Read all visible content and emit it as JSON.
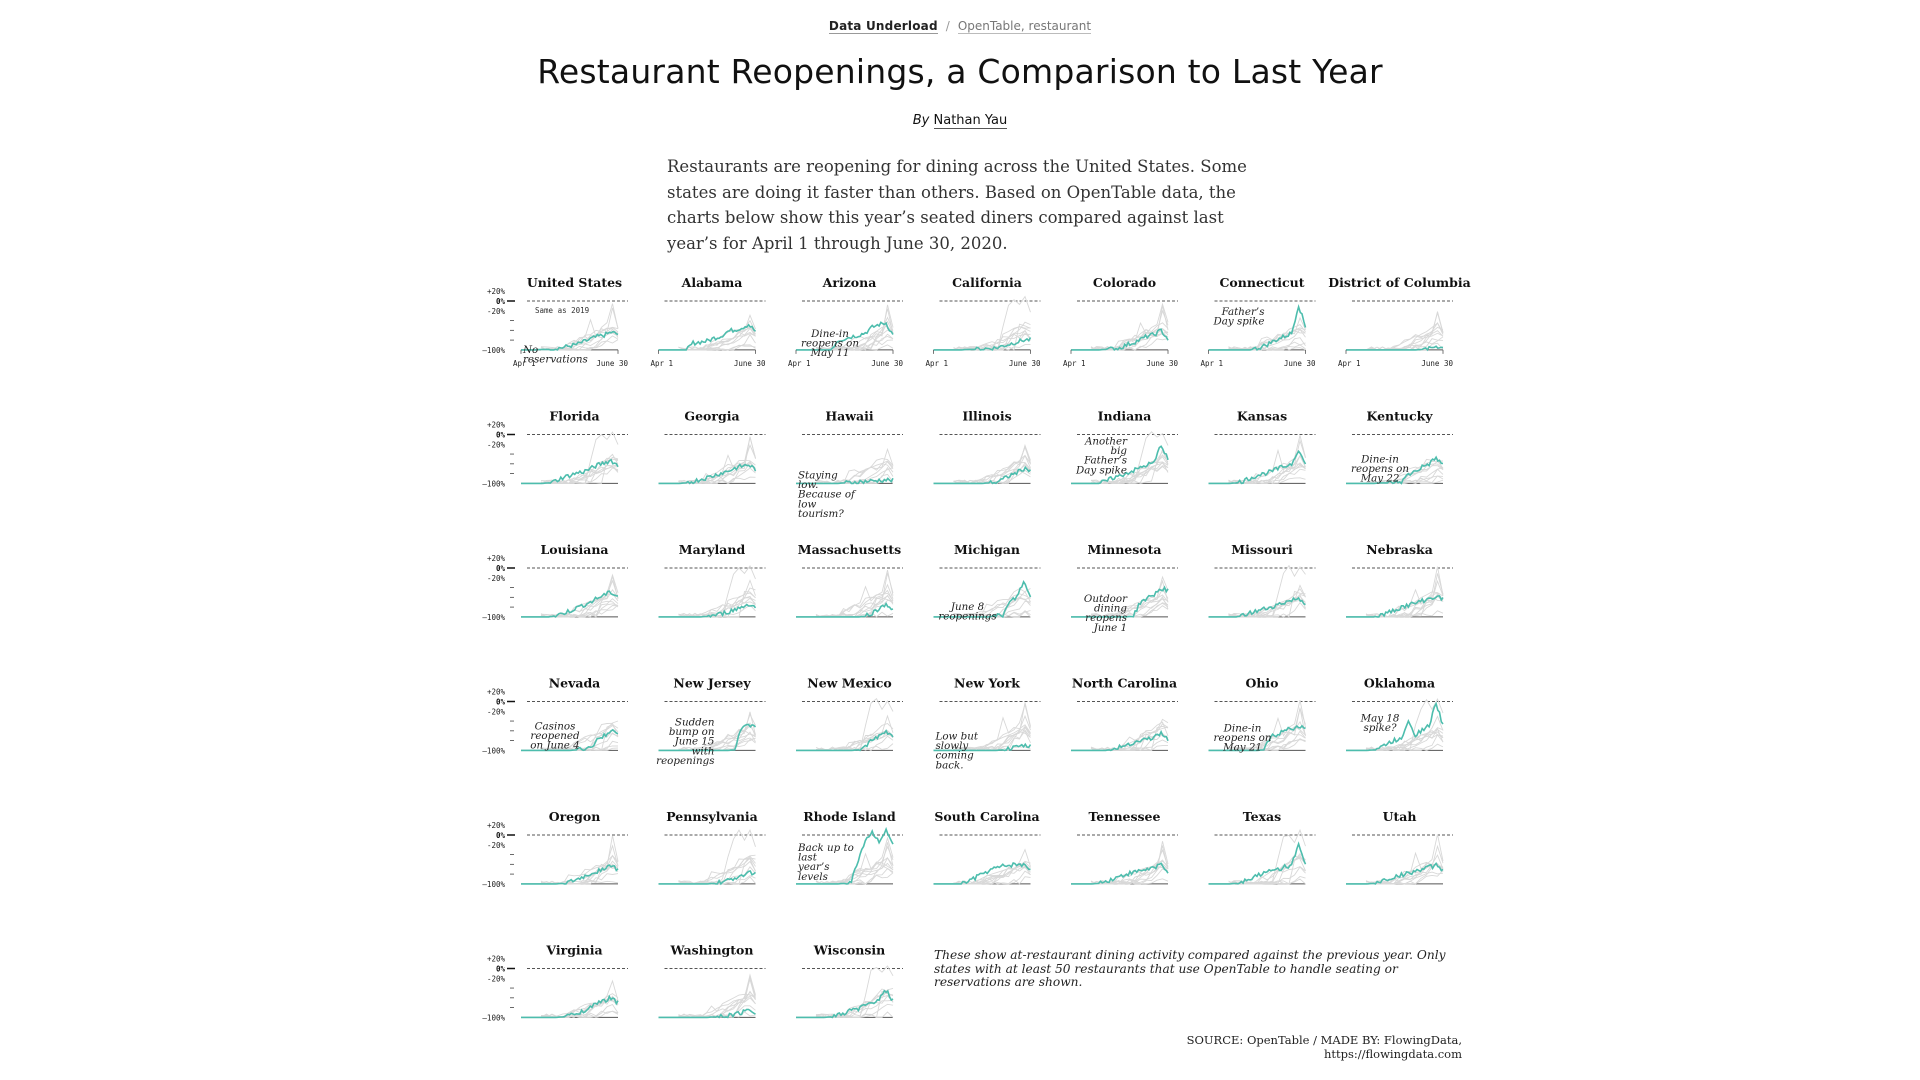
{
  "breadcrumb": {
    "home": "Data Underload",
    "separator": "/",
    "tags": "OpenTable, restaurant"
  },
  "page": {
    "title": "Restaurant Reopenings, a Comparison to Last Year",
    "byline_prefix": "By",
    "author": "Nathan Yau",
    "intro": "Restaurants are reopening for dining across the United States. Some states are doing it faster than others. Based on OpenTable data, the charts below show this year’s seated diners compared against last year’s for April 1 through June 30, 2020.",
    "note": "These show at-restaurant dining activity compared against the previous year. Only states with at least 50 restaurants that use OpenTable to handle seating or reservations are shown.",
    "source": "SOURCE: OpenTable / MADE BY: FlowingData, https://flowingdata.com"
  },
  "colors": {
    "highlight": "#4dbdad",
    "background_lines": "#d8d8d8",
    "baseline": "#555555"
  },
  "chart_data": {
    "type": "line",
    "ylabel_ticks": [
      "+20%",
      "0%",
      "-20%",
      "–100%"
    ],
    "ylim": [
      -100,
      20
    ],
    "reference_line_label": "Same as 2019",
    "x_ticks": [
      "Apr 1",
      "June 30"
    ],
    "x_range": [
      "2020-04-01",
      "2020-06-30"
    ],
    "series": [
      {
        "name": "United States",
        "note": "No reservations",
        "values": [
          -100,
          -100,
          -100,
          -99,
          -99,
          -97,
          -95,
          -92,
          -89,
          -84,
          -78,
          -73,
          -70,
          -64,
          -68
        ]
      },
      {
        "name": "Alabama",
        "values": [
          -100,
          -100,
          -100,
          -100,
          -100,
          -86,
          -84,
          -82,
          -76,
          -72,
          -62,
          -59,
          -55,
          -48,
          -62
        ]
      },
      {
        "name": "Arizona",
        "note": "Dine-in reopens on May 11",
        "values": [
          -100,
          -100,
          -100,
          -100,
          -100,
          -100,
          -81,
          -77,
          -73,
          -70,
          -65,
          -54,
          -48,
          -45,
          -70
        ]
      },
      {
        "name": "California",
        "values": [
          -100,
          -100,
          -100,
          -100,
          -100,
          -99,
          -99,
          -98,
          -97,
          -96,
          -92,
          -88,
          -84,
          -80,
          -79
        ]
      },
      {
        "name": "Colorado",
        "values": [
          -100,
          -100,
          -100,
          -100,
          -100,
          -99,
          -98,
          -96,
          -90,
          -85,
          -79,
          -72,
          -69,
          -60,
          -78
        ]
      },
      {
        "name": "Connecticut",
        "note": "Father’s Day spike",
        "values": [
          -100,
          -100,
          -100,
          -100,
          -100,
          -100,
          -100,
          -97,
          -92,
          -85,
          -78,
          -72,
          -66,
          -8,
          -53
        ]
      },
      {
        "name": "District of Columbia",
        "values": [
          -100,
          -100,
          -100,
          -100,
          -100,
          -100,
          -100,
          -100,
          -100,
          -100,
          -100,
          -99,
          -98,
          -92,
          -96
        ]
      },
      {
        "name": "Florida",
        "values": [
          -100,
          -100,
          -100,
          -100,
          -99,
          -95,
          -88,
          -84,
          -79,
          -76,
          -70,
          -63,
          -58,
          -53,
          -64
        ]
      },
      {
        "name": "Georgia",
        "values": [
          -100,
          -100,
          -100,
          -100,
          -99,
          -96,
          -92,
          -88,
          -84,
          -79,
          -75,
          -69,
          -65,
          -62,
          -71
        ]
      },
      {
        "name": "Hawaii",
        "note": "Staying low. Because of low tourism?",
        "values": [
          -100,
          -100,
          -100,
          -100,
          -100,
          -100,
          -100,
          -99,
          -98,
          -97,
          -96,
          -95,
          -94,
          -93,
          -94
        ]
      },
      {
        "name": "Illinois",
        "values": [
          -100,
          -100,
          -100,
          -100,
          -100,
          -100,
          -100,
          -100,
          -99,
          -98,
          -92,
          -84,
          -78,
          -70,
          -72
        ]
      },
      {
        "name": "Indiana",
        "note": "Another big Father’s Day spike",
        "values": [
          -100,
          -100,
          -100,
          -100,
          -100,
          -96,
          -89,
          -85,
          -79,
          -74,
          -68,
          -62,
          -58,
          -20,
          -52
        ]
      },
      {
        "name": "Kansas",
        "values": [
          -100,
          -100,
          -100,
          -100,
          -99,
          -95,
          -89,
          -84,
          -80,
          -76,
          -70,
          -65,
          -60,
          -30,
          -63
        ]
      },
      {
        "name": "Kentucky",
        "note": "Dine-in reopens on May 22",
        "values": [
          -100,
          -100,
          -100,
          -100,
          -100,
          -99,
          -99,
          -98,
          -97,
          -82,
          -75,
          -66,
          -60,
          -48,
          -62
        ]
      },
      {
        "name": "Louisiana",
        "values": [
          -100,
          -100,
          -100,
          -100,
          -100,
          -98,
          -93,
          -88,
          -82,
          -76,
          -70,
          -62,
          -55,
          -50,
          -58
        ]
      },
      {
        "name": "Maryland",
        "values": [
          -100,
          -100,
          -100,
          -100,
          -100,
          -100,
          -100,
          -99,
          -97,
          -94,
          -90,
          -85,
          -80,
          -74,
          -80
        ]
      },
      {
        "name": "Massachusetts",
        "values": [
          -100,
          -100,
          -100,
          -100,
          -100,
          -100,
          -100,
          -100,
          -100,
          -100,
          -99,
          -92,
          -84,
          -72,
          -86
        ]
      },
      {
        "name": "Michigan",
        "note": "June 8 reopenings",
        "values": [
          -100,
          -100,
          -100,
          -100,
          -100,
          -100,
          -100,
          -100,
          -100,
          -98,
          -97,
          -70,
          -60,
          -28,
          -60
        ]
      },
      {
        "name": "Minnesota",
        "note": "Outdoor dining reopens June 1",
        "values": [
          -100,
          -100,
          -100,
          -100,
          -100,
          -100,
          -100,
          -100,
          -100,
          -98,
          -70,
          -62,
          -54,
          -42,
          -45
        ]
      },
      {
        "name": "Missouri",
        "values": [
          -100,
          -100,
          -100,
          -100,
          -100,
          -97,
          -92,
          -88,
          -84,
          -80,
          -75,
          -70,
          -66,
          -62,
          -72
        ]
      },
      {
        "name": "Nebraska",
        "values": [
          -100,
          -100,
          -100,
          -100,
          -100,
          -97,
          -92,
          -86,
          -80,
          -76,
          -72,
          -67,
          -63,
          -58,
          -64
        ]
      },
      {
        "name": "Nevada",
        "note": "Casinos reopened on June 4",
        "values": [
          -100,
          -100,
          -100,
          -100,
          -100,
          -100,
          -100,
          -100,
          -99,
          -96,
          -94,
          -80,
          -70,
          -58,
          -70
        ]
      },
      {
        "name": "New Jersey",
        "note": "Sudden bump on June 15 with reopenings",
        "values": [
          -100,
          -100,
          -100,
          -100,
          -100,
          -100,
          -100,
          -100,
          -100,
          -100,
          -100,
          -99,
          -52,
          -45,
          -55
        ]
      },
      {
        "name": "New Mexico",
        "values": [
          -100,
          -100,
          -100,
          -100,
          -100,
          -100,
          -100,
          -100,
          -100,
          -99,
          -90,
          -80,
          -72,
          -62,
          -70
        ]
      },
      {
        "name": "New York",
        "note": "Low but slowly coming back.",
        "values": [
          -100,
          -100,
          -100,
          -100,
          -100,
          -100,
          -100,
          -100,
          -100,
          -100,
          -99,
          -97,
          -94,
          -90,
          -92
        ]
      },
      {
        "name": "North Carolina",
        "values": [
          -100,
          -100,
          -100,
          -100,
          -100,
          -100,
          -98,
          -94,
          -88,
          -84,
          -80,
          -76,
          -74,
          -64,
          -78
        ]
      },
      {
        "name": "Ohio",
        "note": "Dine-in reopens on May 21",
        "values": [
          -100,
          -100,
          -100,
          -100,
          -100,
          -100,
          -100,
          -100,
          -99,
          -72,
          -66,
          -60,
          -55,
          -50,
          -58
        ]
      },
      {
        "name": "Oklahoma",
        "note": "May 18 spike?",
        "values": [
          -100,
          -100,
          -100,
          -100,
          -99,
          -94,
          -86,
          -80,
          -75,
          -38,
          -68,
          -58,
          -50,
          -2,
          -50
        ]
      },
      {
        "name": "Oregon",
        "values": [
          -100,
          -100,
          -100,
          -100,
          -100,
          -100,
          -99,
          -97,
          -92,
          -86,
          -80,
          -74,
          -68,
          -62,
          -72
        ]
      },
      {
        "name": "Pennsylvania",
        "values": [
          -100,
          -100,
          -100,
          -100,
          -100,
          -100,
          -100,
          -100,
          -99,
          -97,
          -94,
          -88,
          -82,
          -75,
          -80
        ]
      },
      {
        "name": "Rhode Island",
        "note": "Back up to last year’s levels",
        "values": [
          -100,
          -100,
          -100,
          -100,
          -100,
          -100,
          -100,
          -99,
          -95,
          -50,
          -10,
          5,
          -12,
          8,
          -20
        ]
      },
      {
        "name": "South Carolina",
        "values": [
          -100,
          -100,
          -100,
          -100,
          -100,
          -95,
          -88,
          -80,
          -73,
          -68,
          -64,
          -62,
          -60,
          -62,
          -70
        ]
      },
      {
        "name": "Tennessee",
        "values": [
          -100,
          -100,
          -100,
          -100,
          -99,
          -95,
          -90,
          -85,
          -80,
          -77,
          -73,
          -70,
          -66,
          -60,
          -74
        ]
      },
      {
        "name": "Texas",
        "values": [
          -100,
          -100,
          -100,
          -100,
          -99,
          -94,
          -88,
          -82,
          -78,
          -74,
          -70,
          -65,
          -62,
          -20,
          -64
        ]
      },
      {
        "name": "Utah",
        "values": [
          -100,
          -100,
          -100,
          -100,
          -99,
          -95,
          -90,
          -86,
          -82,
          -78,
          -74,
          -70,
          -66,
          -62,
          -72
        ]
      },
      {
        "name": "Virginia",
        "values": [
          -100,
          -100,
          -100,
          -100,
          -100,
          -100,
          -99,
          -96,
          -92,
          -86,
          -80,
          -72,
          -66,
          -60,
          -70
        ]
      },
      {
        "name": "Washington",
        "values": [
          -100,
          -100,
          -100,
          -100,
          -100,
          -100,
          -100,
          -100,
          -99,
          -98,
          -96,
          -94,
          -90,
          -84,
          -90
        ]
      },
      {
        "name": "Wisconsin",
        "values": [
          -100,
          -100,
          -100,
          -100,
          -100,
          -99,
          -96,
          -92,
          -86,
          -82,
          -76,
          -70,
          -64,
          -45,
          -66
        ]
      }
    ]
  }
}
